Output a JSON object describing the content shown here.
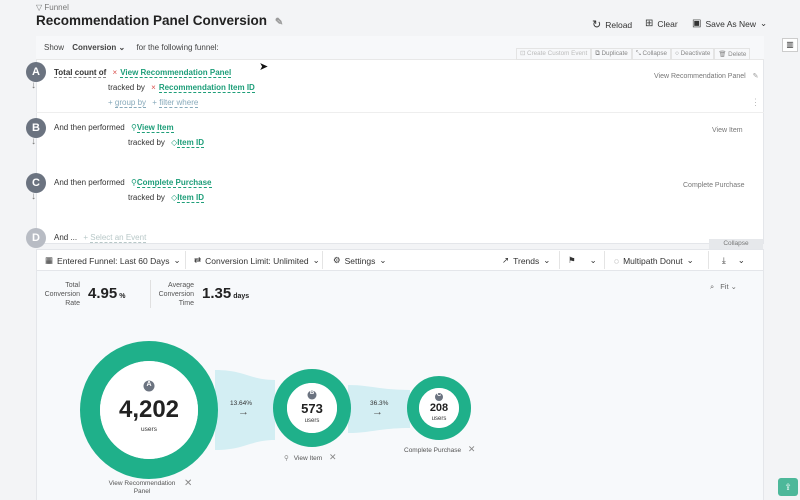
{
  "breadcrumb": "Funnel",
  "title": "Recommendation Panel Conversion",
  "header_actions": {
    "reload": "Reload",
    "clear": "Clear",
    "save_as_new": "Save As New"
  },
  "show_row": {
    "show": "Show",
    "metric": "Conversion",
    "suffix": "for the following funnel:"
  },
  "step_actions": {
    "create": "Create Custom Event",
    "duplicate": "Duplicate",
    "collapse": "Collapse",
    "deactivate": "Deactivate",
    "delete": "Delete"
  },
  "steps": [
    {
      "letter": "A",
      "prefix": "Total count of",
      "event": "View Recommendation Panel",
      "tracked_by": "tracked by",
      "prop": "Recommendation Item ID",
      "right": "View Recommendation Panel",
      "group_by": "group by",
      "filter_where": "filter where"
    },
    {
      "letter": "B",
      "prefix": "And then performed",
      "event": "View Item",
      "tracked_by": "tracked by",
      "prop": "Item ID",
      "right": "View Item"
    },
    {
      "letter": "C",
      "prefix": "And then performed",
      "event": "Complete Purchase",
      "tracked_by": "tracked by",
      "prop": "Item ID",
      "right": "Complete Purchase"
    },
    {
      "letter": "D",
      "prefix": "And ...",
      "event_placeholder": "Select an Event"
    }
  ],
  "collapse_tab": "Collapse",
  "toolbar": {
    "entered": "Entered Funnel: Last 60 Days",
    "limit": "Conversion Limit: Unlimited",
    "settings": "Settings",
    "trends": "Trends",
    "multipath": "Multipath Donut"
  },
  "stats": {
    "tcr_label": "Total Conversion Rate",
    "tcr_value": "4.95",
    "tcr_unit": "%",
    "act_label": "Average Conversion Time",
    "act_value": "1.35",
    "act_unit": "days",
    "fit": "Fit"
  },
  "donuts": [
    {
      "letter": "A",
      "value": "4,202",
      "unit": "users",
      "label": "View Recommendation Panel"
    },
    {
      "letter": "B",
      "value": "573",
      "unit": "users",
      "label": "View Item"
    },
    {
      "letter": "C",
      "value": "208",
      "unit": "users",
      "label": "Complete Purchase"
    }
  ],
  "conversions": [
    "13.64%",
    "36.3%"
  ],
  "colors": {
    "accent": "#1e9e79",
    "flow": "#d3eef3"
  }
}
